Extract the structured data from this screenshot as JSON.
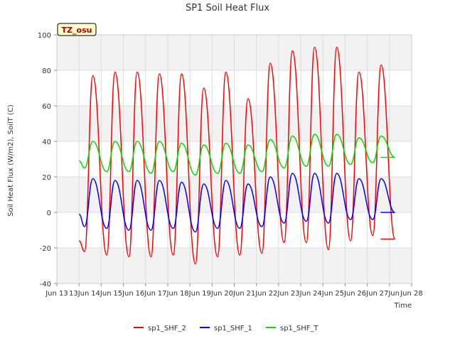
{
  "chart_data": {
    "type": "line",
    "title": "SP1 Soil Heat Flux",
    "xlabel": "Time",
    "ylabel": "Soil Heat Flux (W/m2), SoilT (C)",
    "ylim": [
      -40,
      100
    ],
    "xlim": [
      "Jun 13",
      "Jun 28"
    ],
    "y_ticks": [
      -40,
      -20,
      0,
      20,
      40,
      60,
      80,
      100
    ],
    "x_ticks": [
      "Jun 13",
      "13Jun",
      "14Jun",
      "15Jun",
      "16Jun",
      "17Jun",
      "18Jun",
      "19Jun",
      "20Jun",
      "21Jun",
      "22Jun",
      "23Jun",
      "24Jun",
      "25Jun",
      "26Jun",
      "27Jun",
      "Jun 28"
    ],
    "grid": true,
    "legend_position": "bottom",
    "timezone_badge": "TZ_osu",
    "series": [
      {
        "name": "sp1_SHF_2",
        "color": "#ff0000",
        "daily_max": [
          77,
          79,
          79,
          78,
          78,
          70,
          79,
          64,
          84,
          91,
          93,
          93,
          79,
          83
        ],
        "daily_min": [
          -22,
          -24,
          -25,
          -25,
          -24,
          -29,
          -25,
          -24,
          -23,
          -17,
          -17,
          -21,
          -16,
          -13,
          -15
        ],
        "start_value": -16,
        "end_value": -15
      },
      {
        "name": "sp1_SHF_1",
        "color": "#0000ff",
        "daily_max": [
          19,
          18,
          18,
          18,
          17,
          16,
          18,
          16,
          20,
          22,
          22,
          22,
          19,
          19
        ],
        "daily_min": [
          -8,
          -9,
          -10,
          -10,
          -9,
          -11,
          -9,
          -9,
          -8,
          -6,
          -5,
          -6,
          -4,
          -4,
          0
        ],
        "start_value": -1,
        "end_value": 0
      },
      {
        "name": "sp1_SHF_T",
        "color": "#00dd00",
        "daily_max": [
          40,
          40,
          40,
          40,
          39,
          38,
          39,
          38,
          41,
          43,
          44,
          44,
          42,
          43
        ],
        "daily_min": [
          25,
          23,
          23,
          22,
          23,
          21,
          22,
          22,
          23,
          25,
          26,
          26,
          27,
          28,
          31
        ],
        "start_value": 29,
        "end_value": 31
      }
    ]
  }
}
